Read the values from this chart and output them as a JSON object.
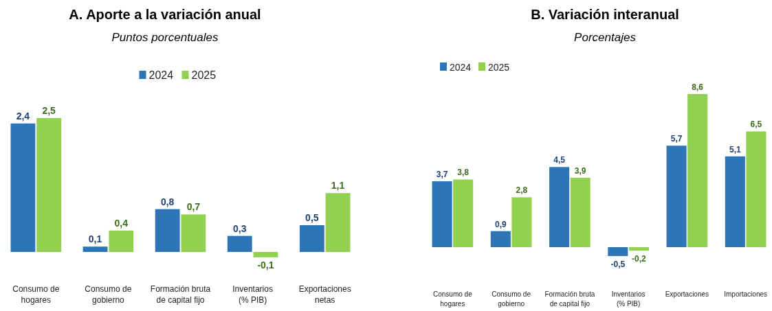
{
  "chart_data": [
    {
      "type": "bar",
      "title": "A.  Aporte a la variación anual",
      "subtitle": "Puntos porcentuales",
      "categories": [
        "Consumo de hogares",
        "Consumo de gobierno",
        "Formación bruta de capital fijo",
        "Inventarios (% PIB)",
        "Exportaciones netas"
      ],
      "legend": "top",
      "series": [
        {
          "name": "2024",
          "color": "#2e75b6",
          "values": [
            2.4,
            0.1,
            0.8,
            0.3,
            0.5
          ],
          "value_labels": [
            "2,4",
            "0,1",
            "0,8",
            "0,3",
            "0,5"
          ]
        },
        {
          "name": "2025",
          "color": "#92d050",
          "values": [
            2.5,
            0.4,
            0.7,
            -0.1,
            1.1
          ],
          "value_labels": [
            "2,5",
            "0,4",
            "0,7",
            "-0,1",
            "1,1"
          ]
        }
      ]
    },
    {
      "type": "bar",
      "title": "B. Variación interanual",
      "subtitle": "Porcentajes",
      "categories": [
        "Consumo de hogares",
        "Consumo de gobierno",
        "Formación bruta de capital fijo",
        "Inventarios (% PIB)",
        "Exportaciones",
        "Importaciones"
      ],
      "legend": "top left",
      "series": [
        {
          "name": "2024",
          "color": "#2e75b6",
          "values": [
            3.7,
            0.9,
            4.5,
            -0.5,
            5.7,
            5.1
          ],
          "value_labels": [
            "3,7",
            "0,9",
            "4,5",
            "-0,5",
            "5,7",
            "5,1"
          ]
        },
        {
          "name": "2025",
          "color": "#92d050",
          "values": [
            3.8,
            2.8,
            3.9,
            -0.2,
            8.6,
            6.5
          ],
          "value_labels": [
            "3,8",
            "2,8",
            "3,9",
            "-0,2",
            "8,6",
            "6,5"
          ]
        }
      ]
    }
  ]
}
